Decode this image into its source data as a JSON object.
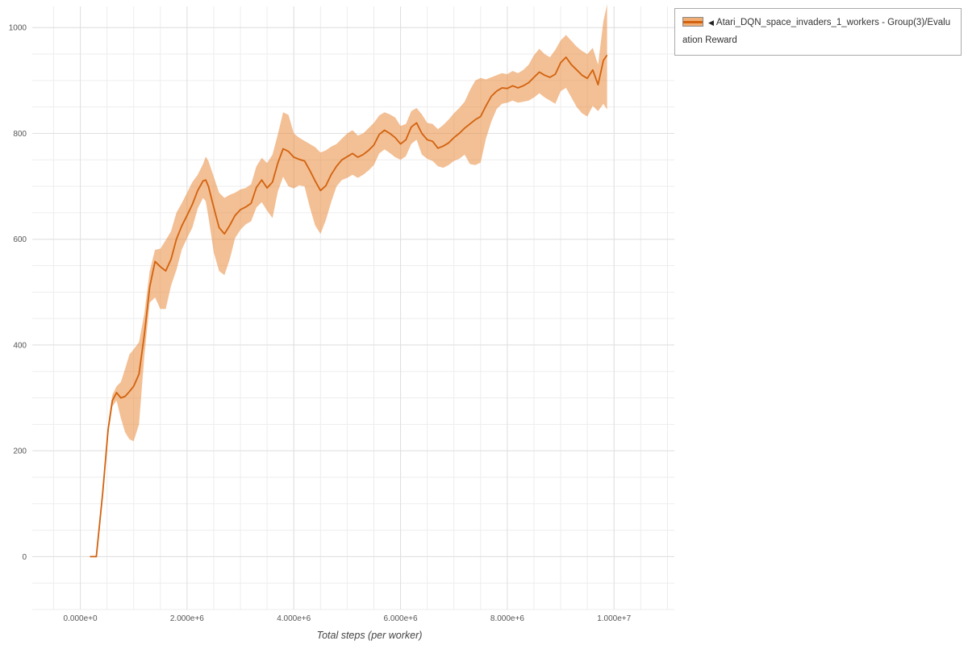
{
  "legend": {
    "collapse_arrow": "◀",
    "series_label": "Atari_DQN_space_invaders_1_workers - Group(3)/Evaluation Reward"
  },
  "colors": {
    "line": "#d2620e",
    "band": "#e98a3c",
    "band_opacity": 0.55,
    "swatch_fill": "#f0ad74",
    "grid_minor": "#ededed",
    "grid_major": "#e0e0e0",
    "axis_text": "#555555",
    "background": "#ffffff"
  },
  "chart_data": {
    "type": "line",
    "title": "",
    "xlabel": "Total steps (per worker)",
    "ylabel": "",
    "grid": true,
    "legend_position": "top-right",
    "xlim": [
      -900000,
      11130000
    ],
    "ylim": [
      -100,
      1040
    ],
    "x_ticks": [
      0,
      2000000,
      4000000,
      6000000,
      8000000,
      10000000
    ],
    "x_tick_labels": [
      "0.000e+0",
      "2.000e+6",
      "4.000e+6",
      "6.000e+6",
      "8.000e+6",
      "1.000e+7"
    ],
    "y_ticks": [
      0,
      200,
      400,
      600,
      800,
      1000
    ],
    "y_tick_labels": [
      "0",
      "200",
      "400",
      "600",
      "800",
      "1000"
    ],
    "series": [
      {
        "name": "Atari_DQN_space_invaders_1_workers - Group(3)/Evaluation Reward",
        "point_format": [
          "x",
          "mean",
          "lower",
          "upper"
        ],
        "points": [
          [
            180000,
            0,
            0,
            0
          ],
          [
            300000,
            0,
            0,
            0
          ],
          [
            420000,
            120,
            114,
            126
          ],
          [
            520000,
            240,
            230,
            250
          ],
          [
            600000,
            295,
            284,
            306
          ],
          [
            680000,
            310,
            295,
            322
          ],
          [
            760000,
            300,
            262,
            330
          ],
          [
            840000,
            303,
            235,
            355
          ],
          [
            920000,
            312,
            222,
            382
          ],
          [
            1000000,
            322,
            218,
            392
          ],
          [
            1100000,
            345,
            250,
            405
          ],
          [
            1200000,
            420,
            380,
            460
          ],
          [
            1300000,
            510,
            480,
            540
          ],
          [
            1400000,
            558,
            490,
            580
          ],
          [
            1500000,
            548,
            468,
            582
          ],
          [
            1600000,
            540,
            468,
            598
          ],
          [
            1700000,
            562,
            512,
            615
          ],
          [
            1800000,
            600,
            542,
            650
          ],
          [
            1900000,
            625,
            580,
            668
          ],
          [
            2000000,
            645,
            602,
            688
          ],
          [
            2100000,
            666,
            622,
            708
          ],
          [
            2200000,
            692,
            658,
            722
          ],
          [
            2300000,
            710,
            678,
            742
          ],
          [
            2350000,
            712,
            672,
            756
          ],
          [
            2400000,
            700,
            642,
            748
          ],
          [
            2500000,
            660,
            575,
            718
          ],
          [
            2600000,
            622,
            540,
            688
          ],
          [
            2700000,
            610,
            532,
            678
          ],
          [
            2800000,
            626,
            562,
            684
          ],
          [
            2900000,
            645,
            602,
            688
          ],
          [
            3000000,
            656,
            618,
            694
          ],
          [
            3100000,
            661,
            628,
            697
          ],
          [
            3200000,
            668,
            634,
            704
          ],
          [
            3300000,
            698,
            660,
            738
          ],
          [
            3400000,
            712,
            670,
            754
          ],
          [
            3500000,
            697,
            654,
            744
          ],
          [
            3600000,
            708,
            640,
            760
          ],
          [
            3700000,
            744,
            690,
            798
          ],
          [
            3800000,
            771,
            718,
            840
          ],
          [
            3900000,
            766,
            700,
            835
          ],
          [
            4000000,
            755,
            696,
            800
          ],
          [
            4100000,
            751,
            702,
            792
          ],
          [
            4200000,
            748,
            700,
            786
          ],
          [
            4300000,
            730,
            660,
            780
          ],
          [
            4400000,
            710,
            626,
            774
          ],
          [
            4500000,
            692,
            610,
            764
          ],
          [
            4600000,
            701,
            636,
            768
          ],
          [
            4700000,
            722,
            670,
            775
          ],
          [
            4800000,
            738,
            700,
            780
          ],
          [
            4900000,
            750,
            712,
            790
          ],
          [
            5000000,
            756,
            716,
            800
          ],
          [
            5100000,
            762,
            722,
            806
          ],
          [
            5200000,
            755,
            716,
            796
          ],
          [
            5300000,
            760,
            722,
            800
          ],
          [
            5400000,
            768,
            730,
            810
          ],
          [
            5500000,
            778,
            740,
            820
          ],
          [
            5600000,
            798,
            762,
            834
          ],
          [
            5700000,
            806,
            770,
            840
          ],
          [
            5800000,
            800,
            763,
            836
          ],
          [
            5900000,
            792,
            755,
            830
          ],
          [
            6000000,
            780,
            750,
            814
          ],
          [
            6100000,
            788,
            757,
            818
          ],
          [
            6200000,
            812,
            780,
            842
          ],
          [
            6300000,
            820,
            788,
            848
          ],
          [
            6400000,
            800,
            760,
            836
          ],
          [
            6500000,
            788,
            752,
            820
          ],
          [
            6600000,
            785,
            748,
            818
          ],
          [
            6700000,
            772,
            738,
            808
          ],
          [
            6800000,
            776,
            735,
            816
          ],
          [
            6900000,
            782,
            740,
            826
          ],
          [
            7000000,
            792,
            748,
            838
          ],
          [
            7100000,
            800,
            752,
            848
          ],
          [
            7200000,
            810,
            760,
            860
          ],
          [
            7300000,
            818,
            742,
            882
          ],
          [
            7400000,
            826,
            740,
            900
          ],
          [
            7500000,
            832,
            745,
            905
          ],
          [
            7600000,
            852,
            790,
            902
          ],
          [
            7700000,
            870,
            822,
            906
          ],
          [
            7800000,
            880,
            846,
            910
          ],
          [
            7900000,
            886,
            856,
            914
          ],
          [
            8000000,
            885,
            858,
            912
          ],
          [
            8100000,
            890,
            862,
            918
          ],
          [
            8200000,
            886,
            858,
            914
          ],
          [
            8300000,
            890,
            860,
            920
          ],
          [
            8400000,
            896,
            862,
            930
          ],
          [
            8500000,
            906,
            868,
            948
          ],
          [
            8600000,
            916,
            876,
            960
          ],
          [
            8700000,
            910,
            868,
            950
          ],
          [
            8800000,
            906,
            862,
            944
          ],
          [
            8900000,
            912,
            856,
            958
          ],
          [
            9000000,
            934,
            880,
            976
          ],
          [
            9100000,
            944,
            886,
            986
          ],
          [
            9200000,
            930,
            868,
            975
          ],
          [
            9300000,
            920,
            850,
            964
          ],
          [
            9400000,
            910,
            838,
            956
          ],
          [
            9500000,
            904,
            832,
            950
          ],
          [
            9600000,
            920,
            852,
            962
          ],
          [
            9700000,
            892,
            842,
            930
          ],
          [
            9800000,
            938,
            856,
            1012
          ],
          [
            9870000,
            948,
            845,
            1044
          ]
        ]
      }
    ]
  }
}
